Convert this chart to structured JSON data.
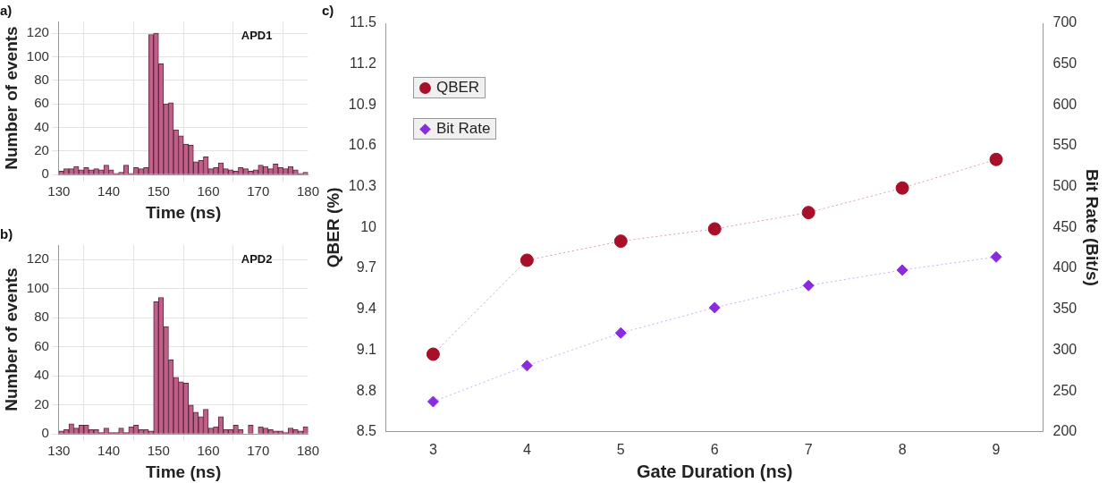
{
  "chart_data": [
    {
      "type": "histogram",
      "title": "a)",
      "xlabel": "Time (ns)",
      "ylabel": "Number of events",
      "annotations": [
        "APD1"
      ],
      "color": "#c0608a",
      "bins": [
        130,
        131,
        132,
        133,
        134,
        135,
        136,
        137,
        138,
        139,
        140,
        141,
        142,
        143,
        144,
        145,
        146,
        147,
        148,
        149,
        150,
        151,
        152,
        153,
        154,
        155,
        156,
        157,
        158,
        159,
        160,
        161,
        162,
        163,
        164,
        165,
        166,
        167,
        168,
        169,
        170,
        171,
        172,
        173,
        174,
        175,
        176,
        177,
        178,
        179,
        180
      ],
      "values": [
        3,
        5,
        5,
        7,
        4,
        6,
        4,
        5,
        4,
        8,
        4,
        1,
        2,
        8,
        1,
        6,
        5,
        6,
        119,
        120,
        94,
        60,
        61,
        38,
        33,
        26,
        25,
        11,
        12,
        15,
        5,
        6,
        10,
        5,
        4,
        3,
        6,
        5,
        3,
        4,
        8,
        7,
        5,
        9,
        6,
        5,
        7,
        4,
        1,
        2
      ],
      "xlim": [
        130,
        180
      ],
      "xticks": [
        130,
        140,
        150,
        160,
        170,
        180
      ],
      "ylim": [
        0,
        130
      ],
      "yticks": [
        0,
        20,
        40,
        60,
        80,
        100,
        120
      ],
      "grid": true
    },
    {
      "type": "histogram",
      "title": "b)",
      "xlabel": "Time (ns)",
      "ylabel": "Number of events",
      "annotations": [
        "APD2"
      ],
      "color": "#c0608a",
      "bins": [
        130,
        131,
        132,
        133,
        134,
        135,
        136,
        137,
        138,
        139,
        140,
        141,
        142,
        143,
        144,
        145,
        146,
        147,
        148,
        149,
        150,
        151,
        152,
        153,
        154,
        155,
        156,
        157,
        158,
        159,
        160,
        161,
        162,
        163,
        164,
        165,
        166,
        167,
        168,
        169,
        170,
        171,
        172,
        173,
        174,
        175,
        176,
        177,
        178,
        179,
        180
      ],
      "values": [
        2,
        3,
        7,
        4,
        6,
        6,
        3,
        3,
        1,
        4,
        1,
        1,
        4,
        1,
        5,
        6,
        3,
        3,
        2,
        91,
        94,
        74,
        51,
        39,
        36,
        35,
        20,
        15,
        12,
        17,
        4,
        5,
        12,
        3,
        3,
        6,
        3,
        0,
        6,
        0,
        5,
        4,
        3,
        2,
        2,
        1,
        4,
        3,
        2,
        5
      ],
      "xlim": [
        130,
        180
      ],
      "xticks": [
        130,
        140,
        150,
        160,
        170,
        180
      ],
      "ylim": [
        0,
        130
      ],
      "yticks": [
        0,
        20,
        40,
        60,
        80,
        100,
        120
      ],
      "grid": true
    },
    {
      "type": "line",
      "title": "c)",
      "xlabel": "Gate Duration (ns)",
      "ylabel": "QBER (%)",
      "y2label": "Bit Rate (Bit/s)",
      "x": [
        3,
        4,
        5,
        6,
        7,
        8,
        9
      ],
      "series": [
        {
          "name": "QBER",
          "color": "#a8102a",
          "marker": "circle",
          "values": [
            9.07,
            9.76,
            9.9,
            9.99,
            10.11,
            10.29,
            10.5
          ]
        },
        {
          "name": "Bit Rate",
          "color": "#8a2be2",
          "marker": "diamond",
          "axis": "y2",
          "values": [
            237,
            281,
            321,
            352,
            379,
            398,
            414
          ]
        }
      ],
      "xlim": [
        2.5,
        9.5
      ],
      "xticks": [
        3,
        4,
        5,
        6,
        7,
        8,
        9
      ],
      "ylim": [
        8.5,
        11.5
      ],
      "yticks": [
        8.5,
        8.8,
        9.1,
        9.4,
        9.7,
        10,
        10.3,
        10.6,
        10.9,
        11.2,
        11.5
      ],
      "y2lim": [
        200,
        700
      ],
      "y2ticks": [
        200,
        250,
        300,
        350,
        400,
        450,
        500,
        550,
        600,
        650,
        700
      ],
      "legend": "top left",
      "line_style": "dotted",
      "grid": false
    }
  ]
}
